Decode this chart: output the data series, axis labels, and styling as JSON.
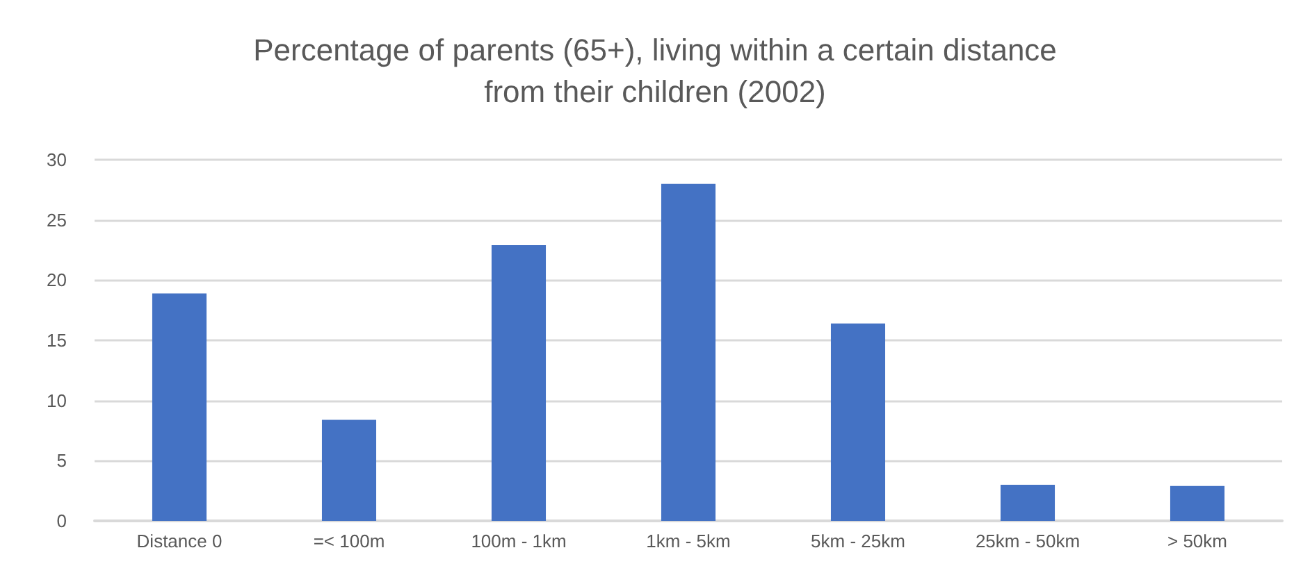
{
  "chart_data": {
    "type": "bar",
    "title": "Percentage of parents (65+), living within a certain distance\nfrom their children (2002)",
    "categories": [
      "Distance 0",
      "=< 100m",
      "100m - 1km",
      "1km - 5km",
      "5km - 25km",
      "25km - 50km",
      "> 50km"
    ],
    "values": [
      18.9,
      8.4,
      22.9,
      28.0,
      16.4,
      3.0,
      2.9
    ],
    "color": "#4472c4",
    "ylim": [
      0,
      30
    ],
    "yticks": [
      0,
      5,
      10,
      15,
      20,
      25,
      30
    ],
    "grid": "y"
  }
}
